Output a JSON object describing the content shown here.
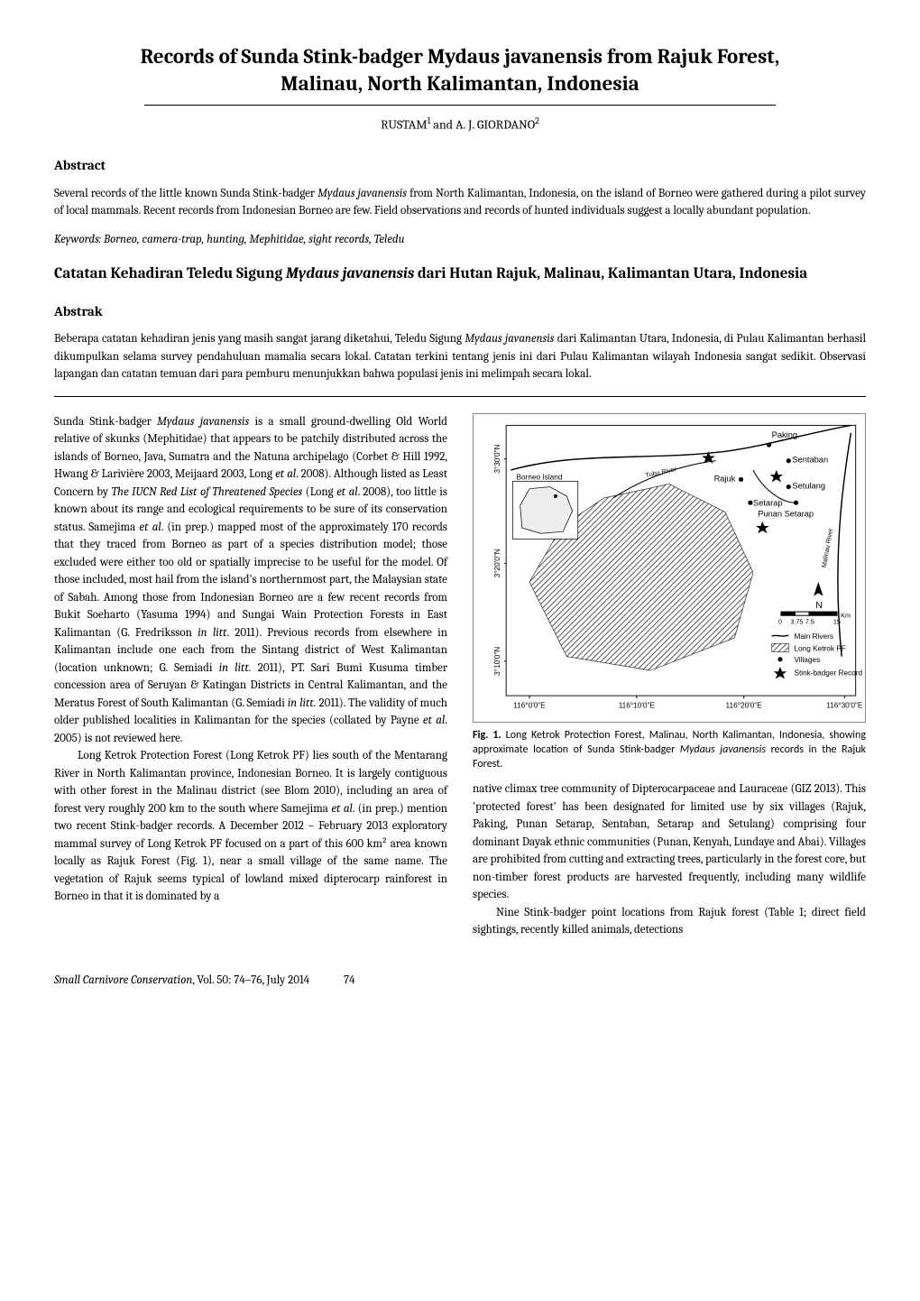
{
  "title_line1": "Records of Sunda Stink-badger Mydaus javanensis from Rajuk Forest,",
  "title_line2": "Malinau, North Kalimantan, Indonesia",
  "authors_html": "RUSTAM<span class='sup'>1</span> and A. J. GIORDANO<span class='sup'>2</span>",
  "abstract_heading": "Abstract",
  "abstract_text": "Several records of the little known Sunda Stink-badger <span class='italic'>Mydaus javanensis</span> from North Kalimantan, Indonesia, on the island of Borneo were gathered during a pilot survey of local mammals. Recent records from Indonesian Borneo are few. Field observations and records of hunted individuals suggest a locally abundant population.",
  "keywords_label": "Keywords",
  "keywords_text": ": Borneo, camera-trap, hunting, Mephitidae, sight records, Teledu",
  "alt_title": "Catatan Kehadiran Teledu Sigung <span class='italic'>Mydaus javanensis</span> dari Hutan Rajuk, Malinau, Kalimantan Utara, Indonesia",
  "abstrak_heading": "Abstrak",
  "abstrak_text": "Beberapa catatan kehadiran jenis yang masih sangat jarang diketahui, Teledu Sigung <span class='italic'>Mydaus javanensis</span> dari Kalimantan Utara, Indonesia, di Pulau Kalimantan berhasil dikumpulkan selama survey pendahuluan mamalia secara lokal. Catatan terkini tentang jenis ini dari Pulau Kalimantan wilayah Indonesia sangat sedikit. Observasi lapangan dan catatan temuan dari para pemburu menunjukkan bahwa populasi jenis ini melimpah secara lokal.",
  "body_col1_p1": "Sunda Stink-badger <span class='italic'>Mydaus javanensis</span> is a small ground-dwelling Old World relative of skunks (Mephitidae) that appears to be patchily distributed across the islands of Borneo, Java, Sumatra and the Natuna archipelago (Corbet & Hill 1992, Hwang & Larivière 2003, Meijaard 2003, Long <span class='italic'>et al</span>. 2008). Although listed as Least Concern by <span class='italic'>The IUCN Red List of Threatened Species</span> (Long <span class='italic'>et al</span>. 2008), too little is known about its range and ecological requirements to be sure of its conservation status. Samejima <span class='italic'>et al</span>. (in prep.) mapped most of the approximately 170 records that they traced from Borneo as part of a species distribution model; those excluded were either too old or spatially imprecise to be useful for the model. Of those included, most hail from the island's northernmost part, the Malaysian state of Sabah. Among those from Indonesian Borneo are a few recent records from Bukit Soeharto (Yasuma 1994) and Sungai Wain Protection Forests in East Kalimantan (G. Fredriksson <span class='italic'>in litt</span>. 2011). Previous records from elsewhere in Kalimantan include one each from the Sintang district of West Kalimantan (location unknown; G. Semiadi <span class='italic'>in litt.</span> 2011), PT. Sari Bumi Kusuma timber concession area of Seruyan & Katingan Districts in Central Kalimantan, and the Meratus Forest of South Kalimantan (G. Semiadi <span class='italic'>in litt.</span> 2011). The validity of much older published localities in Kalimantan for the species (collated by Payne <span class='italic'>et al</span>. 2005) is not reviewed here.",
  "body_col1_p2": "Long Ketrok Protection Forest (Long Ketrok PF) lies south of the Mentarang River in North Kalimantan province, Indonesian Borneo. It is largely contiguous with other forest in the Malinau district (see Blom 2010), including an area of forest very roughly 200 km to the south where Samejima <span class='italic'>et al</span>. (in prep.) mention two recent Stink-badger records. A December 2012 – February 2013 exploratory mammal survey of Long Ketrok PF focused on a part of this 600 km² area known locally as Rajuk Forest (Fig. 1), near a small village of the same name. The vegetation of Rajuk seems typical of lowland mixed dipterocarp rainforest in Borneo in that it is dominated by a",
  "body_col2_p1": "native climax tree community of Dipterocarpaceae and Lauraceae (GIZ 2013). This 'protected forest' has been designated for limited use by six villages (Rajuk, Paking, Punan Setarap, Sentaban, Setarap and Setulang) comprising four dominant Dayak ethnic communities (Punan, Kenyah, Lundaye and Abai). Villages are prohibited from cutting and extracting trees, particularly in the forest core, but non-timber forest products are harvested frequently, including many wildlife species.",
  "body_col2_p2": "Nine Stink-badger point locations from Rajuk forest (Table 1; direct field sightings, recently killed animals, detections",
  "figure": {
    "background": "#ffffff",
    "border_color": "#888888",
    "outline_color": "#000000",
    "hatch_color": "#333333",
    "river_color": "#000000",
    "text_color": "#000000",
    "font_family": "Arial, sans-serif",
    "inset_fill": "#eeeeee",
    "y_ticks": [
      "3°30'0\"N",
      "3°20'0\"N",
      "3°10'0\"N"
    ],
    "x_ticks": [
      "116°0'0\"E",
      "116°10'0\"E",
      "116°20'0\"E",
      "116°30'0\"E"
    ],
    "place_labels": [
      "Paking",
      "Sentaban",
      "Rajuk",
      "Setulang",
      "Setarap",
      "Punan Setarap",
      "Tubu River",
      "Malinau River"
    ],
    "inset_label": "Borneo Island",
    "scale_values": [
      "0",
      "3.75",
      "7.5",
      "15"
    ],
    "scale_unit": "Km",
    "north_label": "N",
    "legend_items": [
      {
        "symbol": "river",
        "label": "Main Rivers"
      },
      {
        "symbol": "hatch",
        "label": "Long Ketrok PF"
      },
      {
        "symbol": "dot",
        "label": "Villages"
      },
      {
        "symbol": "star",
        "label": "Stink-badger Record"
      }
    ],
    "stink_badger_points": [
      [
        252,
        45
      ],
      [
        325,
        65
      ],
      [
        310,
        120
      ]
    ],
    "village_points": [
      [
        317,
        33
      ],
      [
        338,
        50
      ],
      [
        287,
        70
      ],
      [
        338,
        78
      ],
      [
        297,
        95
      ],
      [
        346,
        95
      ]
    ]
  },
  "caption_label": "Fig. 1.",
  "caption_text": " Long Ketrok Protection Forest, Malinau, North Kalimantan, Indonesia, showing approximate location of Sunda Stink-badger <span class='italic'>Mydaus javanensis</span> records in the Rajuk Forest.",
  "footer_journal": "Small Carnivore Conservation",
  "footer_issue": ", Vol. 50: 74–76, July 2014",
  "footer_page": "74"
}
